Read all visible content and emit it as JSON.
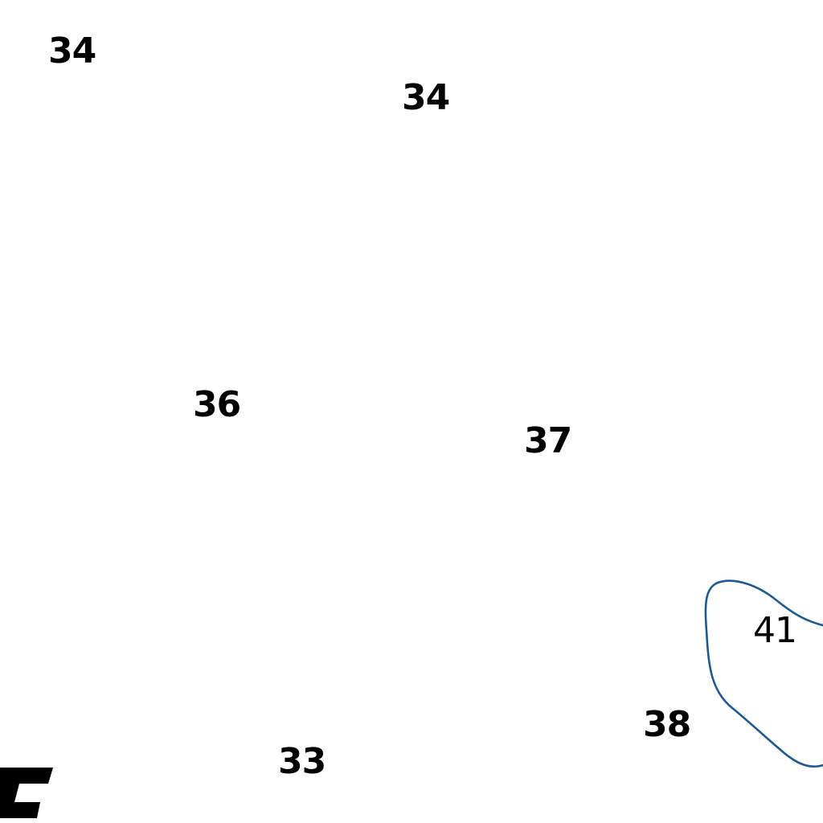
{
  "map": {
    "soundings": [
      {
        "depth": "34"
      },
      {
        "depth": "34"
      },
      {
        "depth": "36"
      },
      {
        "depth": "37"
      },
      {
        "depth": "41"
      },
      {
        "depth": "38"
      },
      {
        "depth": "33"
      }
    ],
    "colors": {
      "background": "#ffffff",
      "sounding_text": "#000000",
      "depth_contour": "#1a5a96",
      "landmark_symbol": "#000000"
    }
  }
}
